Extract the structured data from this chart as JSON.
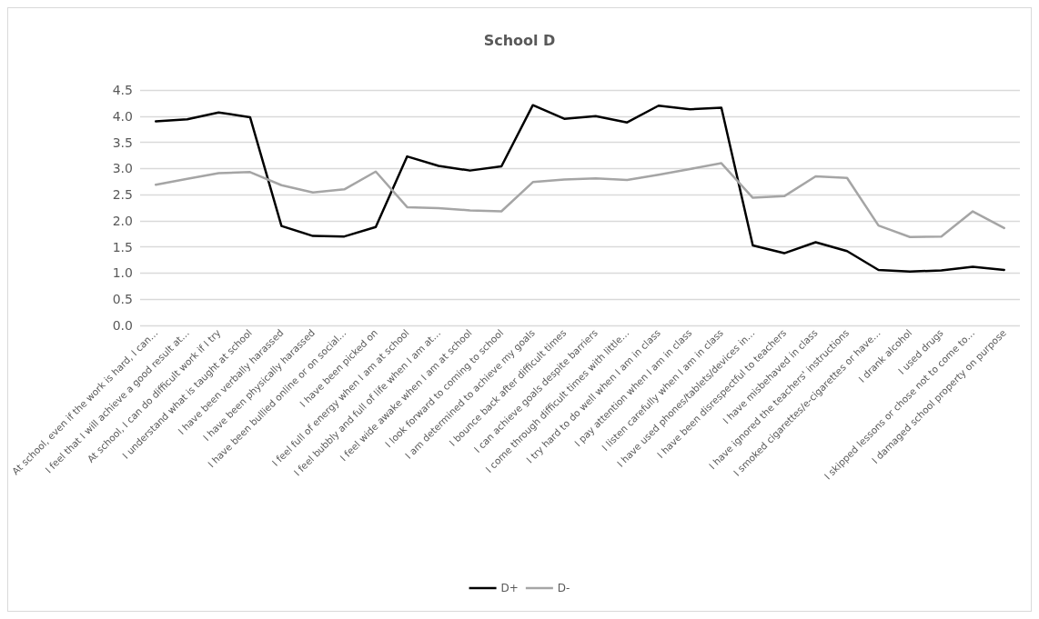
{
  "chart_data": {
    "type": "line",
    "title": "School D",
    "categories": [
      "At school, even if the work is hard, I can…",
      "I feel that I will achieve a good result at…",
      "At school, I can do difficult work if I try",
      "I understand what is taught at school",
      "I have been verbally harassed",
      "I have been physically harassed",
      "I have been bullied online or on social…",
      "I have been picked on",
      "I feel full of energy when I am at school",
      "I feel bubbly and full of life when I am at…",
      "I feel wide awake when I am at school",
      "I look forward to coming to school",
      "I am determined to achieve my goals",
      "I bounce back after difficult times",
      "I can achieve goals despite barriers",
      "I come through difficult times with little…",
      "I try hard to do well when I am in class",
      "I pay attention when I am in class",
      "I listen carefully when I am in class",
      "I have used phones/tablets/devices in…",
      "I have been disrespectful to teachers",
      "I have misbehaved in class",
      "I have ignored the teachers' instructions",
      "I smoked cigarettes/e-cigarettes or have…",
      "I drank alcohol",
      "I used drugs",
      "I skipped lessons or chose not to come to…",
      "I damaged school property on purpose"
    ],
    "series": [
      {
        "name": "D+",
        "color": "#000000",
        "values": [
          3.9,
          3.94,
          4.07,
          3.98,
          1.9,
          1.71,
          1.7,
          1.88,
          3.23,
          3.05,
          2.96,
          3.04,
          4.21,
          3.95,
          4.0,
          3.88,
          4.2,
          4.13,
          4.16,
          1.53,
          1.38,
          1.59,
          1.42,
          1.06,
          1.03,
          1.05,
          1.12,
          1.06
        ]
      },
      {
        "name": "D-",
        "color": "#a5a5a5",
        "values": [
          2.69,
          2.8,
          2.91,
          2.93,
          2.68,
          2.54,
          2.6,
          2.94,
          2.26,
          2.24,
          2.2,
          2.18,
          2.74,
          2.79,
          2.81,
          2.78,
          2.88,
          2.99,
          3.1,
          2.44,
          2.47,
          2.85,
          2.82,
          1.91,
          1.69,
          1.7,
          2.18,
          1.86
        ]
      }
    ],
    "ylim": [
      0,
      4.5
    ],
    "yticks": [
      {
        "value": 0,
        "label": "0.0"
      },
      0.5,
      {
        "value": 1,
        "label": "1.0"
      },
      1.5,
      {
        "value": 2,
        "label": "2.0"
      },
      2.5,
      {
        "value": 3,
        "label": "3.0"
      },
      3.5,
      {
        "value": 4,
        "label": "4.0"
      },
      4.5
    ],
    "grid": "y",
    "legend": "bottom",
    "marker": "none",
    "line_style": "solid"
  }
}
